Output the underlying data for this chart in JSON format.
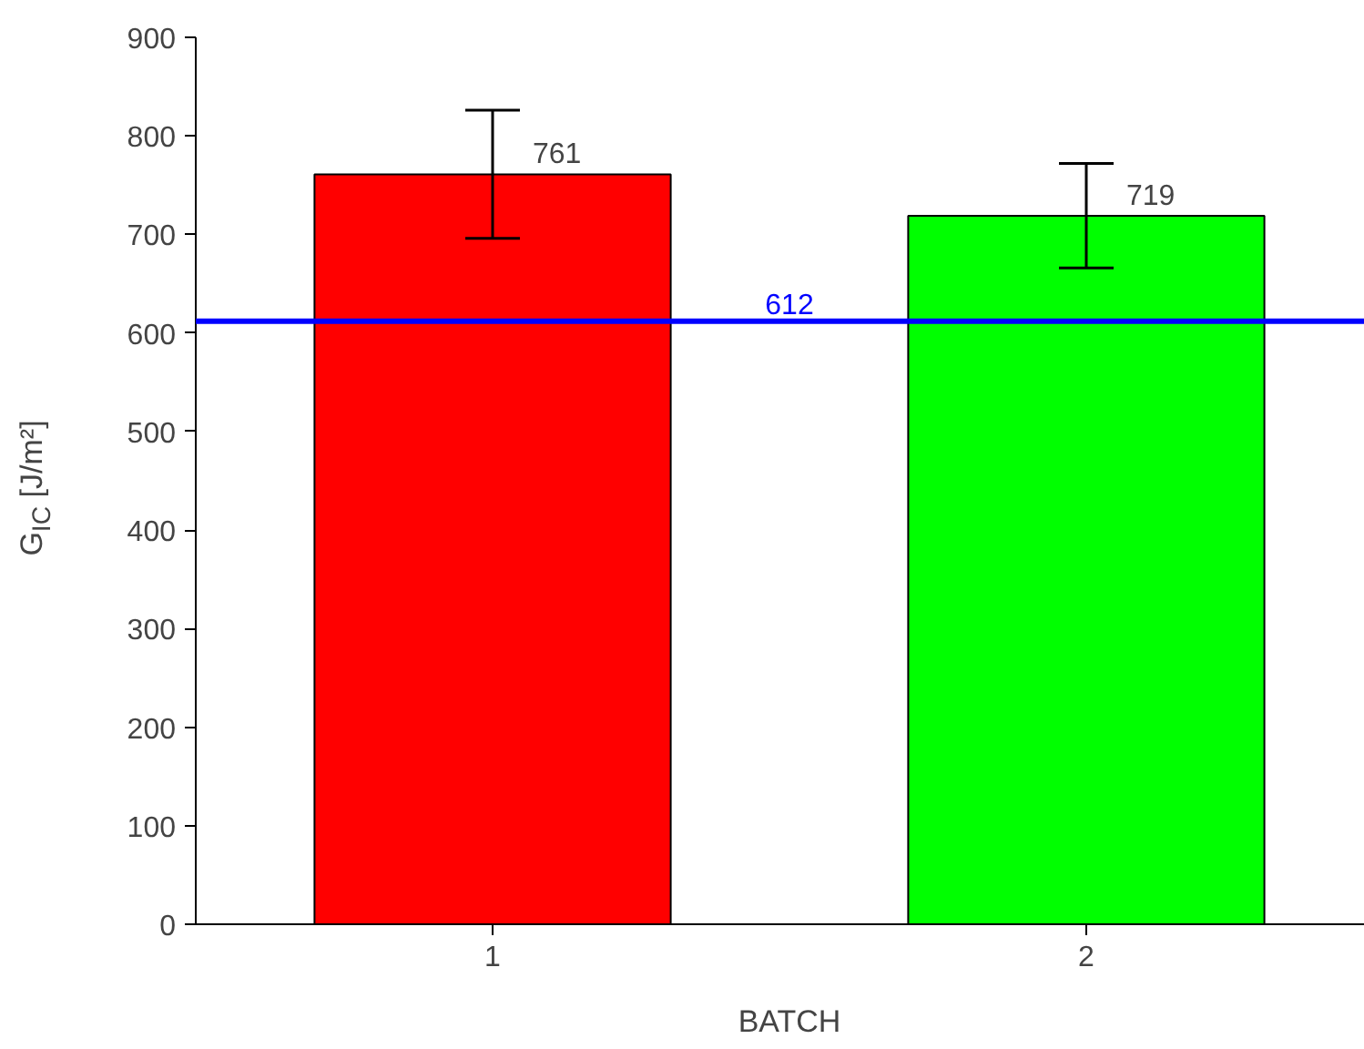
{
  "chart_data": {
    "type": "bar",
    "xlabel": "BATCH",
    "ylabel": "G$_{IC}$ [J/m²]",
    "categories": [
      "1",
      "2"
    ],
    "values": [
      761,
      719
    ],
    "colors": [
      "#ff0000",
      "#00ff00"
    ],
    "errors": [
      65,
      53
    ],
    "data_labels": true,
    "ylim": [
      0,
      900
    ],
    "yticks": [
      0,
      100,
      200,
      300,
      400,
      500,
      600,
      700,
      800,
      900
    ],
    "ref_lines": [
      {
        "axis": "y",
        "value": 612,
        "label": "612",
        "color": "#0000ff"
      }
    ],
    "grid": false
  }
}
